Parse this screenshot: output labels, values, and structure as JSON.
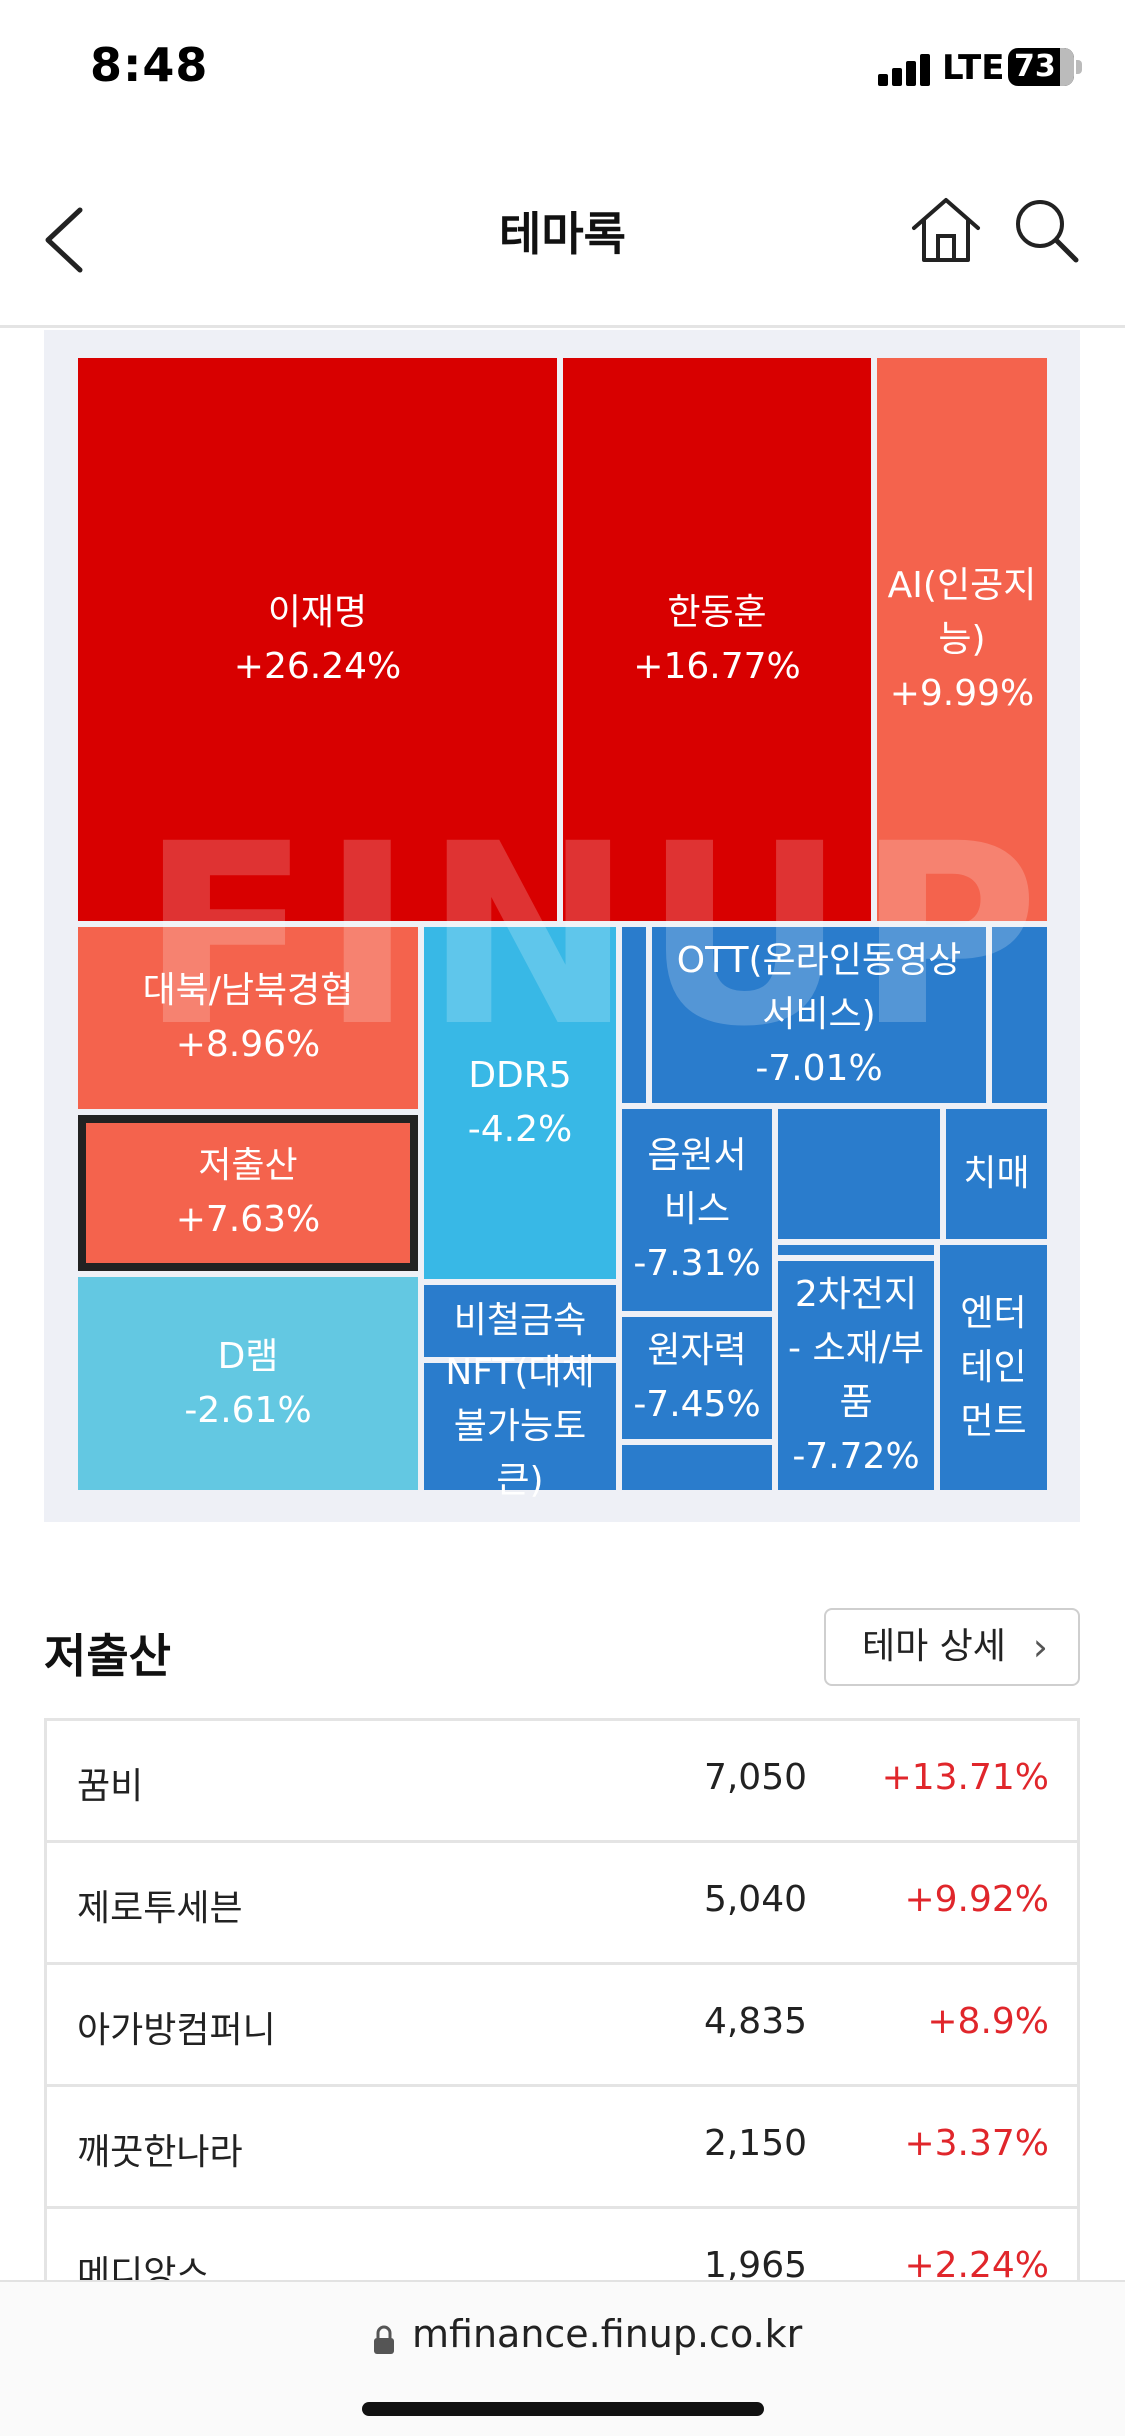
{
  "status": {
    "time": "8:48",
    "network": "LTE",
    "battery": "73"
  },
  "header": {
    "title": "테마록",
    "icons": [
      "chevron-left-icon",
      "home-icon",
      "search-icon"
    ]
  },
  "treemap": {
    "watermark": "FINUP",
    "tiles": [
      {
        "name": "이재명",
        "pct": "+26.24%",
        "color": "#d80000"
      },
      {
        "name": "한동훈",
        "pct": "+16.77%",
        "color": "#d80000"
      },
      {
        "name": "AI(인공지능)",
        "pct": "+9.99%",
        "color": "#f4634d"
      },
      {
        "name": "대북/남북경협",
        "pct": "+8.96%",
        "color": "#f4634d"
      },
      {
        "name": "저출산",
        "pct": "+7.63%",
        "color": "#f4634d",
        "selected": true
      },
      {
        "name": "D램",
        "pct": "-2.61%",
        "color": "#63c8e2"
      },
      {
        "name": "DDR5",
        "pct": "-4.2%",
        "color": "#38b8e6"
      },
      {
        "name": "비철금속",
        "pct": "",
        "color": "#2a7ccc"
      },
      {
        "name": "NFT(대체불가능토큰)",
        "pct": "",
        "color": "#2a7ccc"
      },
      {
        "name": "OTT(온라인동영상서비스)",
        "pct": "-7.01%",
        "color": "#2a7ccc"
      },
      {
        "name": "음원서비스",
        "pct": "-7.31%",
        "color": "#2a7ccc"
      },
      {
        "name": "원자력",
        "pct": "-7.45%",
        "color": "#2a7ccc"
      },
      {
        "name": "2차전지 - 소재/부품",
        "pct": "-7.72%",
        "color": "#2a7ccc"
      },
      {
        "name": "치매",
        "pct": "",
        "color": "#2a7ccc"
      },
      {
        "name": "엔터테인먼트",
        "pct": "",
        "color": "#2a7ccc"
      },
      {
        "name": "",
        "pct": "",
        "color": "#2a7ccc"
      },
      {
        "name": "",
        "pct": "",
        "color": "#2a7ccc"
      },
      {
        "name": "",
        "pct": "",
        "color": "#2a7ccc"
      },
      {
        "name": "",
        "pct": "",
        "color": "#2a7ccc"
      },
      {
        "name": "",
        "pct": "",
        "color": "#2a7ccc"
      }
    ]
  },
  "theme": {
    "title": "저출산",
    "detail_button": "테마 상세",
    "stocks": [
      {
        "name": "꿈비",
        "price": "7,050",
        "change": "+13.71%"
      },
      {
        "name": "제로투세븐",
        "price": "5,040",
        "change": "+9.92%"
      },
      {
        "name": "아가방컴퍼니",
        "price": "4,835",
        "change": "+8.9%"
      },
      {
        "name": "깨끗한나라",
        "price": "2,150",
        "change": "+3.37%"
      },
      {
        "name": "메디앙스",
        "price": "1,965",
        "change": "+2.24%"
      }
    ]
  },
  "browser": {
    "url": "mfinance.finup.co.kr"
  }
}
